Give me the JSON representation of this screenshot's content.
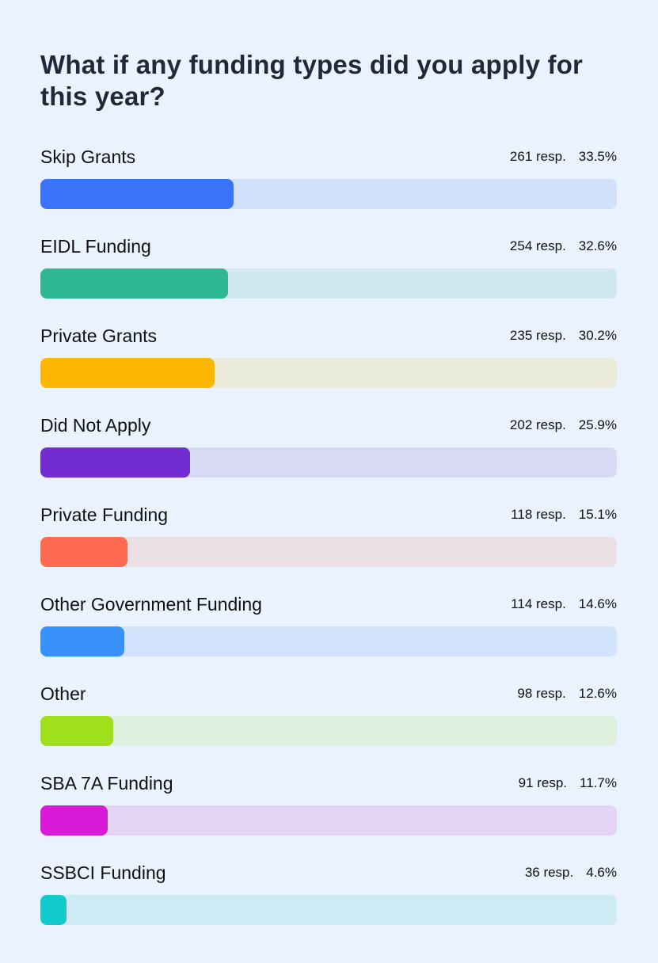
{
  "chart_data": {
    "type": "bar",
    "orientation": "horizontal",
    "title": "What if any funding types did you apply for this year?",
    "categories": [
      "Skip Grants",
      "EIDL Funding",
      "Private Grants",
      "Did Not Apply",
      "Private Funding",
      "Other Government Funding",
      "Other",
      "SBA 7A Funding",
      "SSBCI Funding"
    ],
    "values": [
      33.5,
      32.6,
      30.2,
      25.9,
      15.1,
      14.6,
      12.6,
      11.7,
      4.6
    ],
    "responses": [
      261,
      254,
      235,
      202,
      118,
      114,
      98,
      91,
      36
    ],
    "value_unit": "%",
    "xlim": [
      0,
      100
    ],
    "grid": false,
    "legend": "none",
    "items": [
      {
        "label": "Skip Grants",
        "resp": "261 resp.",
        "pct_label": "33.5%",
        "pct": 33.5,
        "color": "#3a72fa",
        "track": "#d1e0fb"
      },
      {
        "label": "EIDL Funding",
        "resp": "254 resp.",
        "pct_label": "32.6%",
        "pct": 32.6,
        "color": "#2eb891",
        "track": "#cfe9ee"
      },
      {
        "label": "Private Grants",
        "resp": "235 resp.",
        "pct_label": "30.2%",
        "pct": 30.2,
        "color": "#fdb702",
        "track": "#eaecd9"
      },
      {
        "label": "Did Not Apply",
        "resp": "202 resp.",
        "pct_label": "25.9%",
        "pct": 25.9,
        "color": "#732bd2",
        "track": "#d9d8f5"
      },
      {
        "label": "Private Funding",
        "resp": "118 resp.",
        "pct_label": "15.1%",
        "pct": 15.1,
        "color": "#ff6b50",
        "track": "#ebdfe6"
      },
      {
        "label": "Other Government Funding",
        "resp": "114 resp.",
        "pct_label": "14.6%",
        "pct": 14.6,
        "color": "#3890f9",
        "track": "#d1e4fb"
      },
      {
        "label": "Other",
        "resp": "98 resp.",
        "pct_label": "12.6%",
        "pct": 12.6,
        "color": "#a1df1c",
        "track": "#dff0df"
      },
      {
        "label": "SBA 7A Funding",
        "resp": "91 resp.",
        "pct_label": "11.7%",
        "pct": 11.7,
        "color": "#d81ad8",
        "track": "#e5d3f6"
      },
      {
        "label": "SSBCI Funding",
        "resp": "36 resp.",
        "pct_label": "4.6%",
        "pct": 4.6,
        "color": "#13cbcc",
        "track": "#cdebf5"
      }
    ]
  }
}
